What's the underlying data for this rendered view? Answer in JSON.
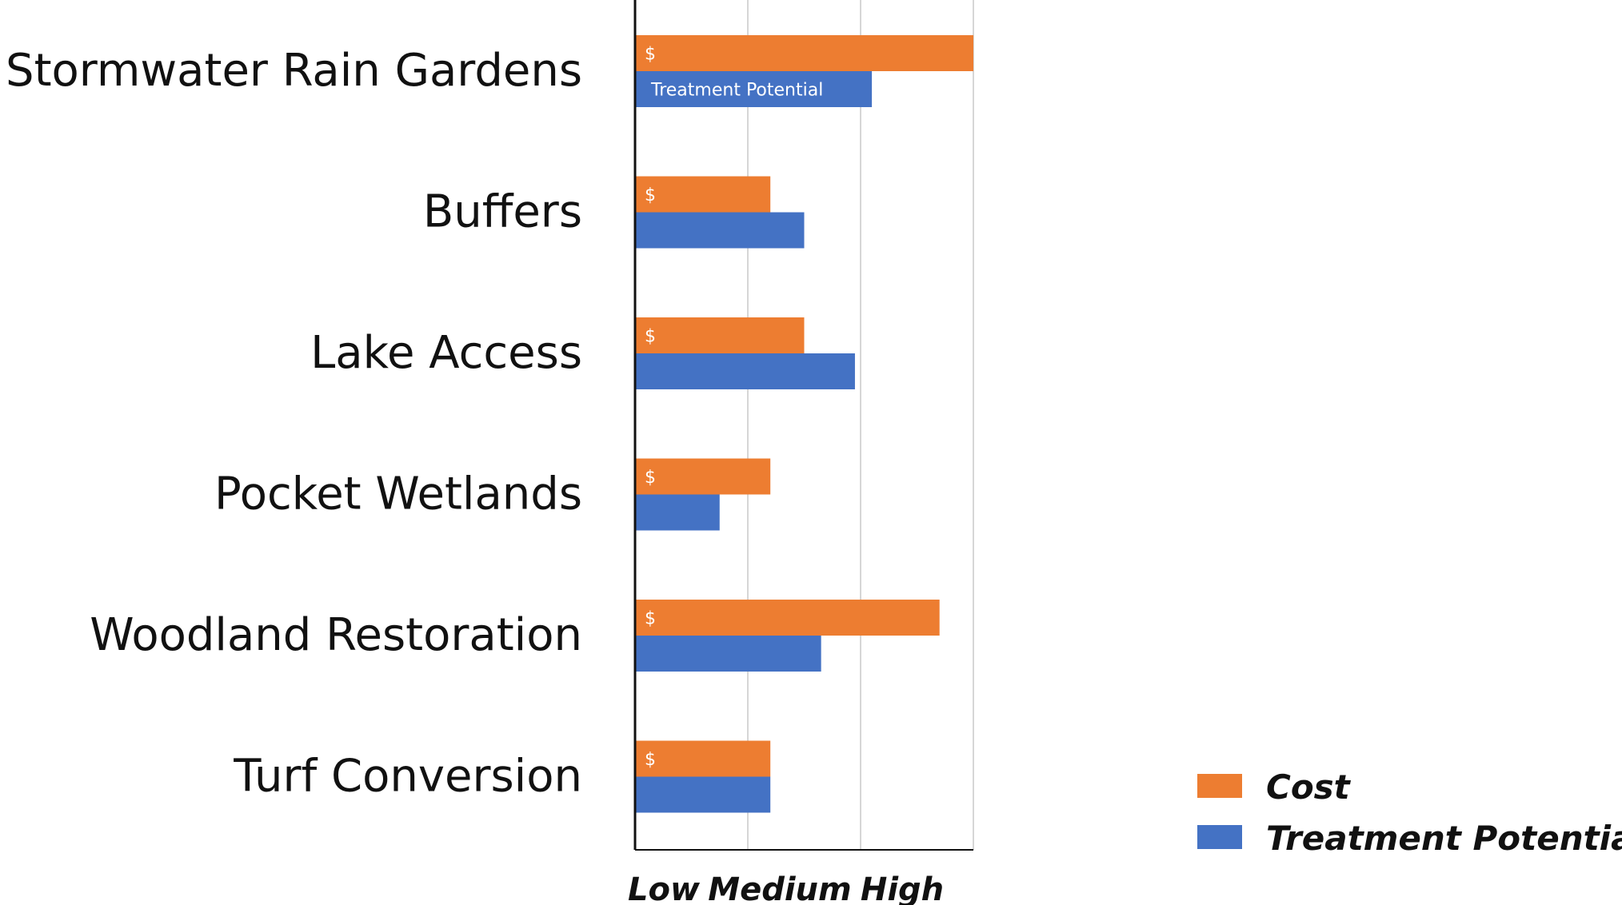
{
  "chart_data": {
    "type": "bar",
    "orientation": "horizontal",
    "categories": [
      "Stormwater Rain Gardens",
      "Buffers",
      "Lake Access",
      "Pocket Wetlands",
      "Woodland Restoration",
      "Turf Conversion"
    ],
    "series": [
      {
        "name": "Cost",
        "color": "#ED7D31",
        "values": [
          3.0,
          1.2,
          1.5,
          1.2,
          2.7,
          1.2
        ],
        "bar_labels": [
          "$",
          "$",
          "$",
          "$",
          "$",
          "$"
        ]
      },
      {
        "name": "Treatment Potential",
        "color": "#4472C4",
        "values": [
          2.1,
          1.5,
          1.95,
          0.75,
          1.65,
          1.2
        ],
        "bar_labels": [
          "Treatment Potential",
          "",
          "",
          "",
          "",
          ""
        ]
      }
    ],
    "x_tick_labels": [
      "Low",
      "Medium",
      "High"
    ],
    "xlim": [
      0,
      3
    ],
    "grid": true,
    "legend": "bottom-right"
  }
}
